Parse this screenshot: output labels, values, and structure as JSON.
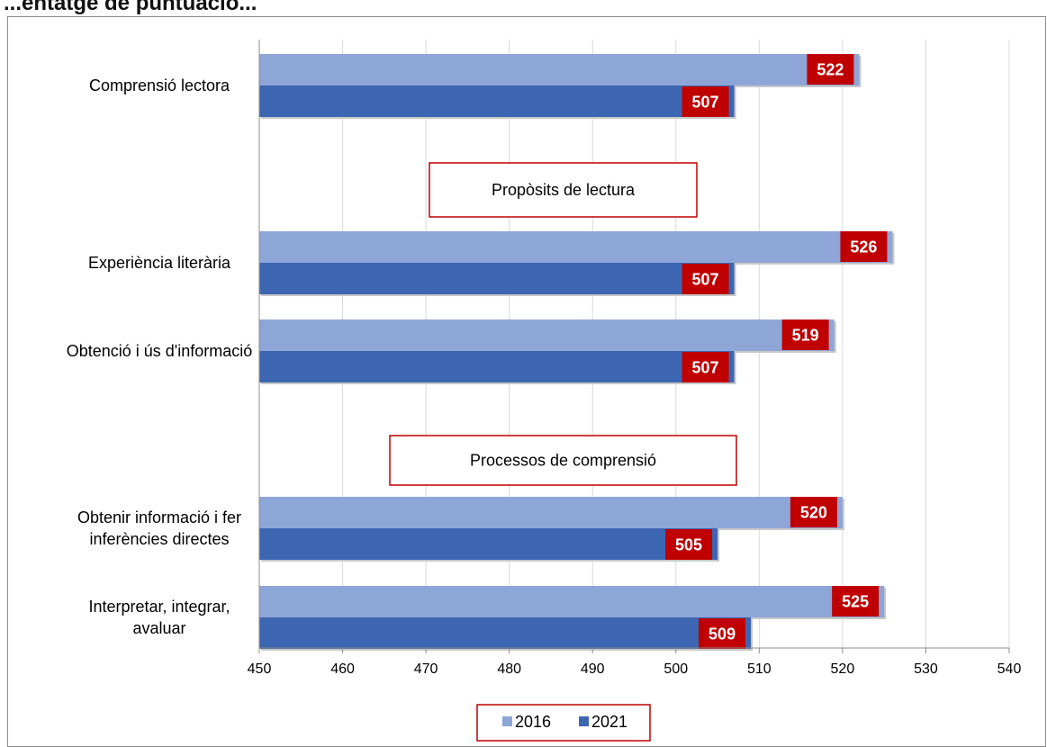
{
  "title": "...entatge de puntuació...",
  "chart_data": {
    "type": "bar",
    "orientation": "horizontal",
    "xlim": [
      450,
      540
    ],
    "x_ticks": [
      450,
      460,
      470,
      480,
      490,
      500,
      510,
      520,
      530,
      540
    ],
    "grid": "vertical",
    "legend_position": "bottom",
    "series": [
      {
        "name": "2016",
        "color": "#8EA5D7"
      },
      {
        "name": "2021",
        "color": "#3D66B2"
      }
    ],
    "label_box_color": "#C00000",
    "section_labels": [
      "Propòsits de lectura",
      "Processos de comprensió"
    ],
    "categories": [
      {
        "label": [
          "Comprensió lectora"
        ],
        "values": [
          522,
          507
        ]
      },
      {
        "label": [
          "Experiència literària"
        ],
        "values": [
          526,
          507
        ]
      },
      {
        "label": [
          "Obtenció i ús d'informació"
        ],
        "values": [
          519,
          507
        ]
      },
      {
        "label": [
          "Obtenir informació i fer",
          "inferències directes"
        ],
        "values": [
          520,
          505
        ]
      },
      {
        "label": [
          "Interpretar, integrar,",
          "avaluar"
        ],
        "values": [
          525,
          509
        ]
      }
    ]
  }
}
